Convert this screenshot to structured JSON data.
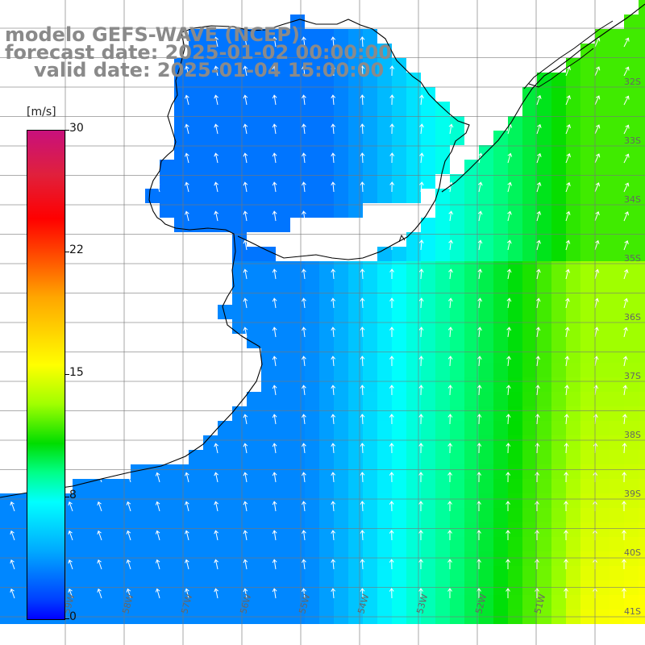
{
  "title": {
    "line1": "modelo GEFS-WAVE (NCEP)",
    "line2": "forecast date: 2025-01-02 00:00:00",
    "line3": "valid date: 2025-01-04 15:00:00"
  },
  "colorbar": {
    "unit": "[m/s]",
    "min": 0,
    "max": 30,
    "ticks": [
      "30",
      "22",
      "15",
      "8",
      "0"
    ],
    "tick_values": [
      30,
      22,
      15,
      8,
      0
    ]
  },
  "lat_labels": [
    "32S",
    "33S",
    "34S",
    "35S",
    "36S",
    "37S",
    "38S",
    "39S",
    "40S",
    "41S"
  ],
  "lon_labels": [
    "59W",
    "58W",
    "57W",
    "56W",
    "55W",
    "54W",
    "53W",
    "52W",
    "51W"
  ],
  "field": {
    "variable": "wind speed",
    "range_visible_m_s": [
      5,
      15
    ],
    "low_region": "southwest (blue, ~5 m/s)",
    "high_region": "southeast (yellow-green, ~14 m/s)"
  }
}
